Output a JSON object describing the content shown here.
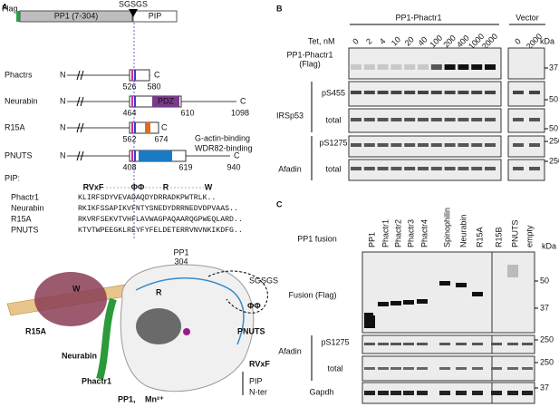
{
  "panel_a": {
    "label": "A",
    "flag": "Flag",
    "pp1": "PP1 (7-304)",
    "linker": "SGSGS",
    "pip": "PIP",
    "constructs": [
      {
        "name": "Phactrs",
        "n": "N",
        "c": "C",
        "start": "526",
        "end": "580"
      },
      {
        "name": "Neurabin",
        "n": "N",
        "c": "C",
        "start": "464",
        "domain": "PDZ",
        "mid": "610",
        "end": "1098"
      },
      {
        "name": "R15A",
        "n": "N",
        "c": "C",
        "start": "562",
        "end": "674"
      },
      {
        "name": "PNUTS",
        "n": "N",
        "c": "C",
        "start": "408",
        "mid": "619",
        "end": "940"
      }
    ],
    "annotations": [
      "G-actin-binding",
      "WDR82-binding"
    ],
    "alignment": {
      "title": "PIP:",
      "motifs": [
        "RVxF",
        "ΦΦ",
        "R",
        "W"
      ],
      "rows": [
        {
          "name": "Phactr1",
          "sequence": "KLIRFSDYVEVADAQDYDRRADKPWTRLK.."
        },
        {
          "name": "Neurabin",
          "sequence": "RKIKFSSAPIKVFNTYSNEDYDRRNEDVDPVAAS.."
        },
        {
          "name": "R15A",
          "sequence": "RKVRFSEKVTVHFLAVWAGPAQAARQGPWEQLARD.."
        },
        {
          "name": "PNUTS",
          "sequence": "KTVTWPEEGKLREYFYFELDETERRVNVNKIKDFG.."
        }
      ]
    },
    "structure": {
      "pp1_tail": "PP1",
      "tail_end": "304",
      "linker": "SGSGS",
      "w": "W",
      "r": "R",
      "phiphi": "ΦΦ",
      "r15a": "R15A",
      "neurabin": "Neurabin",
      "pnuts": "PNUTS",
      "phactr1": "Phactr1",
      "rvxf": "RVxF",
      "pip": "PIP",
      "nter": "N-ter",
      "pp1": "PP1,",
      "metal": "Mn²⁺"
    }
  },
  "panel_b": {
    "label": "B",
    "group": "PP1-Phactr1",
    "vector": "Vector",
    "tet_label": "Tet, nM",
    "tet": [
      "0",
      "2",
      "4",
      "10",
      "20",
      "40",
      "100",
      "200",
      "400",
      "1000",
      "2000"
    ],
    "vector_tet": [
      "0",
      "2000"
    ],
    "unit": "kDa",
    "flag_label": [
      "PP1-Phactr1",
      "(Flag)"
    ],
    "irsp53": "IRSp53",
    "ps455": "pS455",
    "total1": "total",
    "afadin": "Afadin",
    "ps1275": "pS1275",
    "total2": "total",
    "markers": [
      "37",
      "50",
      "50",
      "250",
      "250"
    ]
  },
  "panel_c": {
    "label": "C",
    "fusion_label": "PP1 fusion",
    "lanes": [
      "PP1",
      "Phactr1",
      "Phactr2",
      "Phactr3",
      "Phactr4",
      "Spinophilin",
      "Neurabin",
      "R15A",
      "R15B",
      "PNUTS",
      "empty"
    ],
    "unit": "kDa",
    "fusion": "Fusion (Flag)",
    "afadin": "Afadin",
    "ps1275": "pS1275",
    "total": "total",
    "gapdh": "Gapdh",
    "markers": [
      "50",
      "37",
      "250",
      "250",
      "37"
    ]
  }
}
